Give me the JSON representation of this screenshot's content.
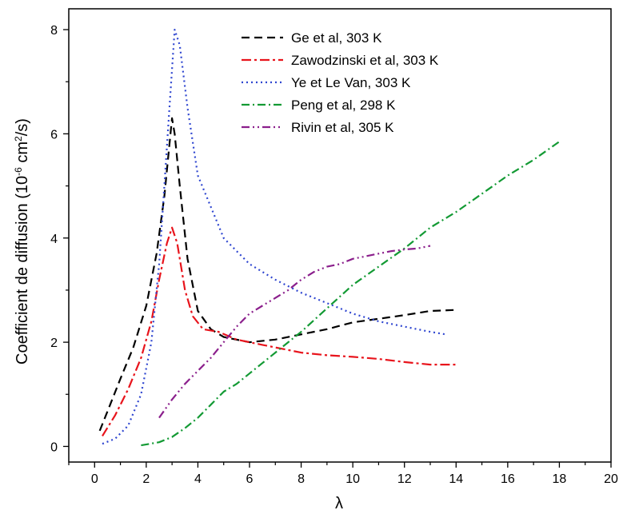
{
  "chart_data": {
    "type": "line",
    "title": "",
    "xlabel": "λ",
    "ylabel": {
      "main": "Coefficient de diffusion (10",
      "exp1": "-6",
      "mid": " cm",
      "exp2": "2",
      "end": "/s)"
    },
    "xlim": [
      -1,
      20
    ],
    "ylim": [
      -0.3,
      8.4
    ],
    "xticks": [
      0,
      2,
      4,
      6,
      8,
      10,
      12,
      14,
      16,
      18,
      20
    ],
    "yticks": [
      0,
      2,
      4,
      6,
      8
    ],
    "grid": false,
    "legend_position": "top-right",
    "series": [
      {
        "name": "Ge et al, 303 K",
        "color": "#000000",
        "dash": "10,6",
        "x": [
          0.2,
          0.6,
          1.0,
          1.5,
          2.0,
          2.4,
          2.7,
          2.9,
          3.0,
          3.1,
          3.3,
          3.6,
          4.0,
          4.5,
          5.0,
          6.0,
          7.0,
          8.0,
          9.0,
          10.0,
          11.0,
          12.0,
          13.0,
          14.0
        ],
        "y": [
          0.3,
          0.8,
          1.3,
          1.9,
          2.7,
          3.7,
          4.8,
          5.8,
          6.3,
          6.0,
          5.0,
          3.6,
          2.6,
          2.25,
          2.1,
          2.0,
          2.05,
          2.15,
          2.25,
          2.38,
          2.45,
          2.52,
          2.6,
          2.62
        ]
      },
      {
        "name": "Zawodzinski et al, 303 K",
        "color": "#e8141c",
        "dash": "12,4,3,4",
        "x": [
          0.3,
          0.8,
          1.3,
          1.8,
          2.2,
          2.5,
          2.8,
          3.0,
          3.2,
          3.5,
          3.8,
          4.2,
          4.8,
          5.5,
          6.5,
          8.0,
          9.0,
          10.0,
          11.0,
          12.0,
          13.0,
          14.0
        ],
        "y": [
          0.2,
          0.6,
          1.1,
          1.7,
          2.4,
          3.2,
          3.9,
          4.2,
          3.9,
          3.0,
          2.5,
          2.25,
          2.2,
          2.05,
          1.95,
          1.8,
          1.75,
          1.72,
          1.68,
          1.62,
          1.57,
          1.57
        ]
      },
      {
        "name": "Ye et Le Van, 303 K",
        "color": "#2f46d0",
        "dash": "2,4",
        "x": [
          0.3,
          0.8,
          1.3,
          1.8,
          2.2,
          2.5,
          2.7,
          2.9,
          3.1,
          3.3,
          3.6,
          4.0,
          4.5,
          5.0,
          6.0,
          7.0,
          8.0,
          9.0,
          10.0,
          11.0,
          12.0,
          13.0,
          13.6
        ],
        "y": [
          0.05,
          0.15,
          0.4,
          1.0,
          2.0,
          3.5,
          5.0,
          6.5,
          8.0,
          7.7,
          6.5,
          5.2,
          4.6,
          4.0,
          3.5,
          3.2,
          2.95,
          2.75,
          2.55,
          2.4,
          2.3,
          2.2,
          2.15
        ]
      },
      {
        "name": "Peng et al, 298 K",
        "color": "#139a34",
        "dash": "10,4,2,4",
        "x": [
          1.8,
          2.5,
          3.0,
          3.5,
          4.0,
          4.5,
          5.0,
          5.5,
          6.0,
          6.5,
          7.0,
          7.5,
          8.0,
          9.0,
          10.0,
          11.0,
          12.0,
          13.0,
          14.0,
          15.0,
          16.0,
          17.0,
          18.0
        ],
        "y": [
          0.02,
          0.08,
          0.18,
          0.35,
          0.55,
          0.8,
          1.05,
          1.2,
          1.4,
          1.6,
          1.8,
          2.0,
          2.2,
          2.65,
          3.1,
          3.45,
          3.8,
          4.2,
          4.5,
          4.85,
          5.2,
          5.5,
          5.85
        ]
      },
      {
        "name": "Rivin et al, 305 K",
        "color": "#8b1f8c",
        "dash": "10,4,2,4,2,4",
        "x": [
          2.5,
          3.0,
          3.5,
          4.0,
          4.5,
          5.0,
          5.5,
          6.0,
          6.5,
          7.0,
          7.5,
          8.0,
          8.5,
          9.0,
          9.5,
          10.0,
          10.5,
          11.0,
          11.5,
          12.0,
          12.5,
          13.0
        ],
        "y": [
          0.55,
          0.9,
          1.2,
          1.45,
          1.7,
          2.0,
          2.3,
          2.55,
          2.7,
          2.85,
          3.0,
          3.2,
          3.35,
          3.45,
          3.5,
          3.6,
          3.65,
          3.7,
          3.75,
          3.78,
          3.8,
          3.85
        ]
      }
    ]
  }
}
